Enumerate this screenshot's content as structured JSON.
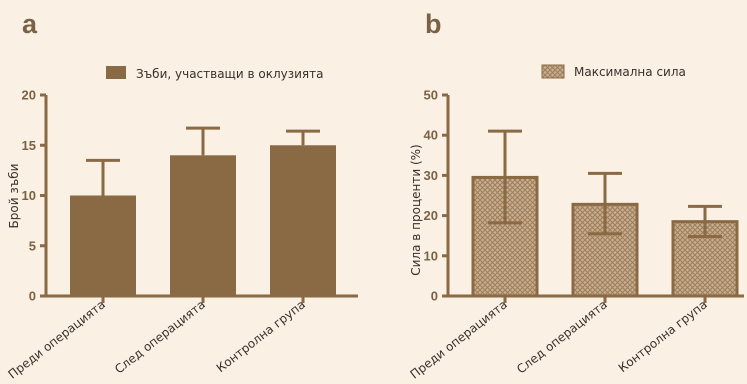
{
  "chart_data": [
    {
      "type": "bar",
      "panel_label": "a",
      "legend": "Зъби, участващи в оклузията",
      "ylabel": "Брой зъби",
      "categories": [
        "Преди операцията",
        "След операцията",
        "Контролна група"
      ],
      "values": [
        10,
        14,
        15
      ],
      "error_upper": [
        13.5,
        16.7,
        16.4
      ],
      "ylim": [
        0,
        20
      ],
      "yticks": [
        0,
        5,
        10,
        15,
        20
      ],
      "fill_style": "solid",
      "color": "#8a6a44",
      "grid": false
    },
    {
      "type": "bar",
      "panel_label": "b",
      "legend": "Максимална сила",
      "ylabel": "Сила в проценти (%)",
      "categories": [
        "Преди операцията",
        "След операцията",
        "Контролна група"
      ],
      "values": [
        29.5,
        22.8,
        18.5
      ],
      "error_upper": [
        41,
        30.5,
        22.3
      ],
      "error_lower": [
        18.2,
        15.5,
        14.8
      ],
      "ylim": [
        0,
        50
      ],
      "yticks": [
        0,
        10,
        20,
        30,
        40,
        50
      ],
      "fill_style": "hatched",
      "color": "#8a6a44",
      "grid": false
    }
  ]
}
